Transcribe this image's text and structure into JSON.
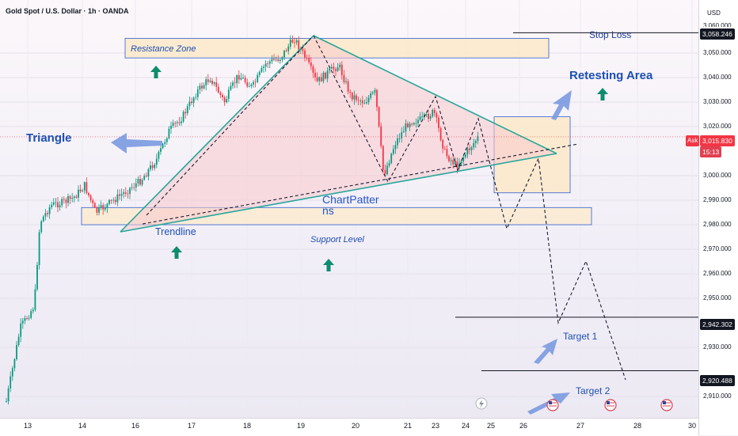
{
  "header": {
    "title": "Gold Spot / U.S. Dollar · 1h · OANDA"
  },
  "price_axis": {
    "currency": "USD",
    "top_cut_label": "3,060.000",
    "ticks": [
      "3,050.000",
      "3,040.000",
      "3,030.000",
      "3,020.000",
      "3,000.000",
      "2,990.000",
      "2,980.000",
      "2,970.000",
      "2,960.000",
      "2,950.000",
      "2,930.000",
      "2,910.000"
    ],
    "stop_loss_value": "3,058.246",
    "current_price": "3,015.830",
    "countdown": "15:13",
    "ask_label": "Ask",
    "target1_value": "2,942.302",
    "target2_value": "2,920.488"
  },
  "time_axis": {
    "ticks": [
      "13",
      "14",
      "16",
      "17",
      "18",
      "19",
      "20",
      "21",
      "23",
      "24",
      "25",
      "26",
      "27",
      "28",
      "30"
    ]
  },
  "annotations": {
    "triangle": "Triangle",
    "resistance_zone": "Resistance Zone",
    "retesting_area": "Retesting Area",
    "stop_loss": "Stop Loss",
    "chart_patterns_line1": "ChartPatter",
    "chart_patterns_line2": "ns",
    "trendline": "Trendline",
    "support_level": "Support Level",
    "target1": "Target 1",
    "target2": "Target 2"
  },
  "colors": {
    "up_candle": "#089981",
    "down_candle": "#f23645",
    "pattern_line": "#26a69a",
    "annotation_blue": "#1e4fb4",
    "zone_fill": "#fde9c9",
    "zone_border": "#2f5fd0"
  },
  "chart_data": {
    "type": "candlestick",
    "instrument": "Gold Spot / U.S. Dollar",
    "timeframe": "1h",
    "source": "OANDA",
    "ylim": [
      2905,
      3062
    ],
    "x_ticks": [
      "13",
      "14",
      "16",
      "17",
      "18",
      "19",
      "20",
      "21",
      "23",
      "24",
      "25",
      "26",
      "27",
      "28",
      "30"
    ],
    "levels": {
      "stop_loss": 3058.246,
      "current_price": 3015.83,
      "target_1": 2942.302,
      "target_2": 2920.488
    },
    "resistance_zone": [
      3048.0,
      3056.0
    ],
    "support_zone": [
      2980.0,
      2987.0
    ],
    "retesting_area": [
      2993.0,
      3024.0
    ],
    "price_path": [
      {
        "x": 0.0,
        "y": 2908
      },
      {
        "x": 0.5,
        "y": 2938
      },
      {
        "x": 1.0,
        "y": 2947
      },
      {
        "x": 1.2,
        "y": 2981
      },
      {
        "x": 1.6,
        "y": 2988
      },
      {
        "x": 2.0,
        "y": 2989
      },
      {
        "x": 2.4,
        "y": 2991
      },
      {
        "x": 2.8,
        "y": 2996
      },
      {
        "x": 3.2,
        "y": 2985
      },
      {
        "x": 3.6,
        "y": 2988
      },
      {
        "x": 4.2,
        "y": 2993
      },
      {
        "x": 4.8,
        "y": 2998
      },
      {
        "x": 5.4,
        "y": 3007
      },
      {
        "x": 5.8,
        "y": 3018
      },
      {
        "x": 6.3,
        "y": 3024
      },
      {
        "x": 6.8,
        "y": 3034
      },
      {
        "x": 7.3,
        "y": 3040
      },
      {
        "x": 7.8,
        "y": 3030
      },
      {
        "x": 8.3,
        "y": 3041
      },
      {
        "x": 8.8,
        "y": 3036
      },
      {
        "x": 9.3,
        "y": 3046
      },
      {
        "x": 9.8,
        "y": 3048
      },
      {
        "x": 10.3,
        "y": 3056
      },
      {
        "x": 10.7,
        "y": 3048
      },
      {
        "x": 11.1,
        "y": 3038
      },
      {
        "x": 11.5,
        "y": 3042
      },
      {
        "x": 11.9,
        "y": 3045
      },
      {
        "x": 12.3,
        "y": 3033
      },
      {
        "x": 12.8,
        "y": 3030
      },
      {
        "x": 13.2,
        "y": 3034
      },
      {
        "x": 13.5,
        "y": 3000
      },
      {
        "x": 13.9,
        "y": 3013
      },
      {
        "x": 14.4,
        "y": 3022
      },
      {
        "x": 14.9,
        "y": 3023
      },
      {
        "x": 15.3,
        "y": 3026
      },
      {
        "x": 15.7,
        "y": 3009
      },
      {
        "x": 16.1,
        "y": 3004
      },
      {
        "x": 16.5,
        "y": 3010
      },
      {
        "x": 16.9,
        "y": 3016
      }
    ],
    "projection": [
      {
        "x": 17.5,
        "y": 3013
      },
      {
        "x": 18.0,
        "y": 2983
      },
      {
        "x": 18.7,
        "y": 3006
      },
      {
        "x": 19.4,
        "y": 2943
      },
      {
        "x": 20.2,
        "y": 2968
      },
      {
        "x": 21.4,
        "y": 2920
      }
    ]
  }
}
